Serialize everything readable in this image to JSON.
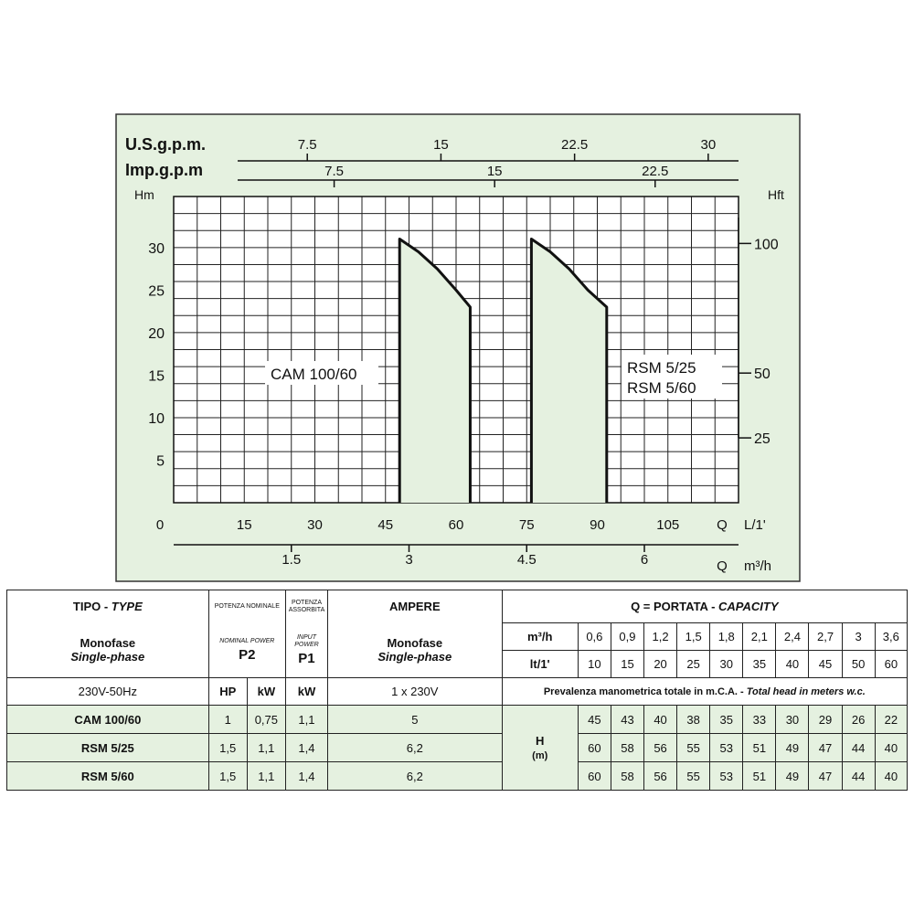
{
  "chart_data": {
    "type": "line",
    "top_axes": [
      {
        "label": "U.S.g.p.m.",
        "ticks": [
          "7.5",
          "15",
          "22.5",
          "30"
        ],
        "values": [
          7.5,
          15,
          22.5,
          30
        ]
      },
      {
        "label": "Imp.g.p.m",
        "ticks": [
          "7.5",
          "15",
          "22.5"
        ],
        "values": [
          7.5,
          15,
          22.5
        ]
      }
    ],
    "xaxis": {
      "label": "Q",
      "unit": "L/1'",
      "ticks": [
        "0",
        "15",
        "30",
        "45",
        "60",
        "75",
        "90",
        "105"
      ],
      "values": [
        0,
        15,
        30,
        45,
        60,
        75,
        90,
        105
      ],
      "xlim": [
        0,
        120
      ]
    },
    "xaxis2": {
      "label": "Q",
      "unit": "m³/h",
      "ticks": [
        "1.5",
        "3",
        "4.5",
        "6"
      ],
      "values": [
        1.5,
        3,
        4.5,
        6
      ]
    },
    "yaxis": {
      "label": "Hm",
      "ticks": [
        "5",
        "10",
        "15",
        "20",
        "25",
        "30"
      ],
      "values": [
        5,
        10,
        15,
        20,
        25,
        30
      ],
      "ylim": [
        0,
        36
      ]
    },
    "yaxis_right": {
      "label": "Hft",
      "ticks": [
        "25",
        "50",
        "100"
      ],
      "values": [
        25,
        50,
        100
      ]
    },
    "grid": true,
    "series": [
      {
        "name": "CAM 100/60",
        "x": [
          48,
          52,
          56,
          60,
          63,
          63,
          48,
          48
        ],
        "y": [
          31,
          29.5,
          27.5,
          25,
          23,
          0,
          0,
          31
        ]
      },
      {
        "name": "RSM 5/25 RSM 5/60",
        "x": [
          76,
          80,
          84,
          88,
          92,
          92,
          76,
          76
        ],
        "y": [
          31,
          29.5,
          27.5,
          25,
          23,
          0,
          0,
          31
        ]
      }
    ],
    "labels": {
      "cam": "CAM 100/60",
      "rsm1": "RSM  5/25",
      "rsm2": "RSM  5/60"
    },
    "colors": {
      "panel_bg": "#e5f1e0",
      "grid_bg": "#ffffff",
      "fill": "#e5f1e0",
      "line": "#111111"
    }
  },
  "table": {
    "type_header": {
      "tipo": "TIPO - ",
      "type": "TYPE"
    },
    "p2_header": {
      "it": "POTENZA NOMINALE",
      "en": "NOMINAL POWER",
      "sym": "P2"
    },
    "p1_header": {
      "it": "POTENZA ASSORBITA",
      "en": "INPUT POWER",
      "sym": "P1"
    },
    "ampere_header": "AMPERE",
    "capacity_header": {
      "it": "Q = PORTATA - ",
      "en": "CAPACITY"
    },
    "monofase": {
      "it": "Monofase",
      "en": "Single-phase"
    },
    "voltage": "230V-50Hz",
    "units": {
      "hp": "HP",
      "kw_p2": "kW",
      "kw_p1": "kW"
    },
    "ampere_supply": "1 x 230V",
    "flow_units": {
      "m3h": "m³/h",
      "lt": "lt/1'"
    },
    "flow_m3h": [
      "0,6",
      "0,9",
      "1,2",
      "1,5",
      "1,8",
      "2,1",
      "2,4",
      "2,7",
      "3",
      "3,6"
    ],
    "flow_lt": [
      "10",
      "15",
      "20",
      "25",
      "30",
      "35",
      "40",
      "45",
      "50",
      "60"
    ],
    "head_note": {
      "it": "Prevalenza manometrica totale in m.C.A. - ",
      "en": "Total head in meters w.c."
    },
    "h_label": {
      "h": "H",
      "m": "(m)"
    },
    "rows": [
      {
        "model": "CAM 100/60",
        "hp": "1",
        "kw2": "0,75",
        "kw1": "1,1",
        "amp": "5",
        "h": [
          "45",
          "43",
          "40",
          "38",
          "35",
          "33",
          "30",
          "29",
          "26",
          "22"
        ]
      },
      {
        "model": "RSM 5/25",
        "hp": "1,5",
        "kw2": "1,1",
        "kw1": "1,4",
        "amp": "6,2",
        "h": [
          "60",
          "58",
          "56",
          "55",
          "53",
          "51",
          "49",
          "47",
          "44",
          "40"
        ]
      },
      {
        "model": "RSM 5/60",
        "hp": "1,5",
        "kw2": "1,1",
        "kw1": "1,4",
        "amp": "6,2",
        "h": [
          "60",
          "58",
          "56",
          "55",
          "53",
          "51",
          "49",
          "47",
          "44",
          "40"
        ]
      }
    ]
  }
}
